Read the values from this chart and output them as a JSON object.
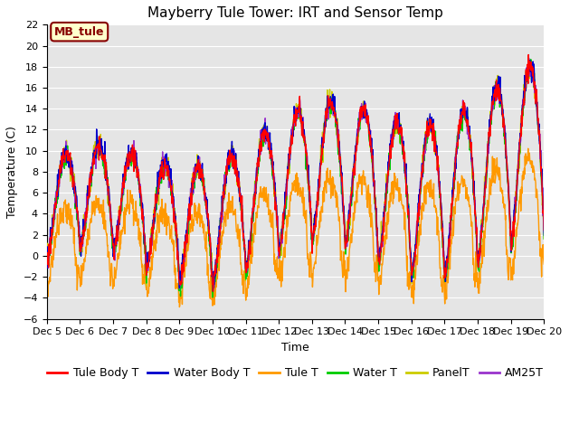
{
  "title": "Mayberry Tule Tower: IRT and Sensor Temp",
  "ylabel": "Temperature (C)",
  "xlabel": "Time",
  "ylim": [
    -6,
    22
  ],
  "yticks": [
    -6,
    -4,
    -2,
    0,
    2,
    4,
    6,
    8,
    10,
    12,
    14,
    16,
    18,
    20,
    22
  ],
  "xtick_labels": [
    "Dec 5",
    "Dec 6",
    "Dec 7",
    "Dec 8",
    "Dec 9",
    "Dec 10",
    "Dec 11",
    "Dec 12",
    "Dec 13",
    "Dec 14",
    "Dec 15",
    "Dec 16",
    "Dec 17",
    "Dec 18",
    "Dec 19",
    "Dec 20"
  ],
  "series_colors": {
    "Tule Body T": "#ff0000",
    "Water Body T": "#0000cc",
    "Tule T": "#ff9900",
    "Water T": "#00cc00",
    "PanelT": "#cccc00",
    "AM25T": "#9933cc"
  },
  "annotation_text": "MB_tule",
  "annotation_bg": "#ffffcc",
  "annotation_border": "#880000",
  "bg_color": "#e5e5e5",
  "grid_color": "#ffffff",
  "title_fontsize": 11,
  "axis_fontsize": 9,
  "tick_fontsize": 8,
  "legend_fontsize": 9,
  "line_width": 1.0
}
